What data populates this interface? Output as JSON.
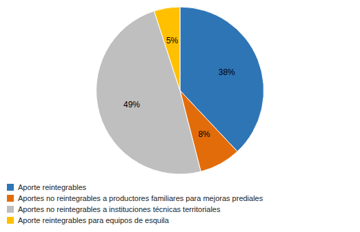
{
  "chart_data": {
    "type": "pie",
    "categories": [
      "Aporte reintegrables",
      "Aportes no reintegrables a productores familiares para mejoras prediales",
      "Aportes no reintegrables a instituciones técnicas territoriales",
      "Aporte reintegrables para equipos de esquila"
    ],
    "values": [
      38,
      8,
      49,
      5
    ],
    "value_labels": [
      "38%",
      "8%",
      "49%",
      "5%"
    ],
    "colors": [
      "#2E75B6",
      "#E36C0A",
      "#BFBFBF",
      "#FFC000"
    ],
    "data_labels": true,
    "legend": "lower left"
  }
}
